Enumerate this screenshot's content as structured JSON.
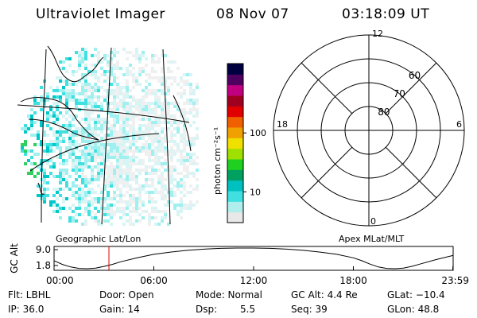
{
  "header": {
    "instrument": "Ultraviolet Imager",
    "date": "08 Nov 07",
    "time": "03:18:09 UT"
  },
  "image_panel": {
    "caption": "Geographic Lat/Lon",
    "description_colors": [
      "#00c8c8",
      "#40e0e0",
      "#a0f0f0",
      "#d8f4f4",
      "#f0f0f0",
      "#30d060"
    ]
  },
  "colorbar": {
    "unit_label": "photon cm⁻²s⁻¹",
    "scale": "log",
    "ticks": [
      {
        "value": 10,
        "label": "10"
      },
      {
        "value": 100,
        "label": "100"
      }
    ],
    "range": [
      3,
      1500
    ],
    "colors": [
      "#e8e8e8",
      "#b0eeee",
      "#40e0e0",
      "#00c0c0",
      "#00a060",
      "#20d020",
      "#a0e000",
      "#f0e000",
      "#f0a000",
      "#f06000",
      "#e00000",
      "#a00020",
      "#c00080",
      "#500060",
      "#000040"
    ]
  },
  "polar_panel": {
    "caption": "Apex MLat/MLT",
    "mlt_labels": [
      {
        "label": "12",
        "mlt": 12
      },
      {
        "label": "18",
        "mlt": 18
      },
      {
        "label": "6",
        "mlt": 6
      },
      {
        "label": "0",
        "mlt": 0
      }
    ],
    "mlat_labels": [
      {
        "label": "80",
        "mlat": 80
      },
      {
        "label": "70",
        "mlat": 70
      },
      {
        "label": "60",
        "mlat": 60
      }
    ]
  },
  "chart_data": {
    "type": "line",
    "title": "",
    "ylabel": "GC Alt",
    "yticks": [
      "9.0",
      "1.8"
    ],
    "ylim": [
      1.8,
      9.0
    ],
    "xlim": [
      0,
      24
    ],
    "xticks": [
      {
        "value": 0,
        "label": "00:00"
      },
      {
        "value": 6,
        "label": "06:00"
      },
      {
        "value": 12,
        "label": "12:00"
      },
      {
        "value": 18,
        "label": "18:00"
      },
      {
        "value": 23.98,
        "label": "23:59"
      }
    ],
    "series": [
      {
        "x": [
          0,
          0.5,
          1,
          1.5,
          2,
          2.5,
          3,
          3.5,
          4,
          5,
          6,
          7,
          8,
          9,
          10,
          11,
          12,
          13,
          14,
          15,
          16,
          17,
          18,
          18.5,
          19,
          19.5,
          20,
          20.5,
          21,
          21.5,
          22,
          23,
          23.98
        ],
        "y": [
          4.6,
          3.3,
          2.4,
          1.9,
          1.8,
          2.0,
          2.6,
          3.3,
          4.2,
          5.6,
          6.8,
          7.6,
          8.2,
          8.6,
          8.9,
          9.0,
          9.0,
          8.9,
          8.6,
          8.2,
          7.6,
          6.8,
          5.6,
          4.6,
          3.4,
          2.4,
          1.9,
          1.8,
          2.0,
          2.6,
          3.4,
          5.0,
          6.4
        ]
      }
    ],
    "marker_time": 3.3
  },
  "info": {
    "filter": "Flt: LBHL",
    "door": "Door: Open",
    "mode": "Mode: Normal",
    "gc_alt": "GC Alt: 4.4 Re",
    "glat": "GLat: −10.4",
    "ip": "IP: 36.0",
    "gain": "Gain: 14",
    "dsp_label": "Dsp:",
    "dsp_value": "5.5",
    "seq": "Seq: 39",
    "glon": "GLon: 48.8"
  }
}
